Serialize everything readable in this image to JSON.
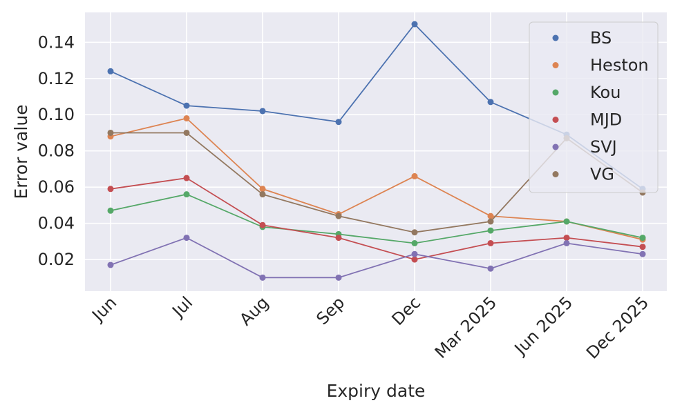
{
  "chart_data": {
    "type": "line",
    "title": "",
    "xlabel": "Expiry date",
    "ylabel": "Error value",
    "categories": [
      "Jun",
      "Jul",
      "Aug",
      "Sep",
      "Dec",
      "Mar 2025",
      "Jun 2025",
      "Dec 2025"
    ],
    "yticks": [
      "0.02",
      "0.04",
      "0.06",
      "0.08",
      "0.10",
      "0.12",
      "0.14"
    ],
    "ylim": [
      0.0025,
      0.1565
    ],
    "grid": true,
    "legend_position": "top-right",
    "series": [
      {
        "name": "BS",
        "color": "#4c72b0",
        "values": [
          0.124,
          0.105,
          0.102,
          0.096,
          0.15,
          0.107,
          0.089,
          0.059
        ]
      },
      {
        "name": "Heston",
        "color": "#dd8452",
        "values": [
          0.088,
          0.098,
          0.059,
          0.045,
          0.066,
          0.044,
          0.041,
          0.031
        ]
      },
      {
        "name": "Kou",
        "color": "#55a868",
        "values": [
          0.047,
          0.056,
          0.038,
          0.034,
          0.029,
          0.036,
          0.041,
          0.032
        ]
      },
      {
        "name": "MJD",
        "color": "#c44e52",
        "values": [
          0.059,
          0.065,
          0.039,
          0.032,
          0.02,
          0.029,
          0.032,
          0.027
        ]
      },
      {
        "name": "SVJ",
        "color": "#8172b3",
        "values": [
          0.017,
          0.032,
          0.01,
          0.01,
          0.023,
          0.015,
          0.029,
          0.023
        ]
      },
      {
        "name": "VG",
        "color": "#937860",
        "values": [
          0.09,
          0.09,
          0.056,
          0.044,
          0.035,
          0.041,
          0.087,
          0.057
        ]
      }
    ]
  }
}
